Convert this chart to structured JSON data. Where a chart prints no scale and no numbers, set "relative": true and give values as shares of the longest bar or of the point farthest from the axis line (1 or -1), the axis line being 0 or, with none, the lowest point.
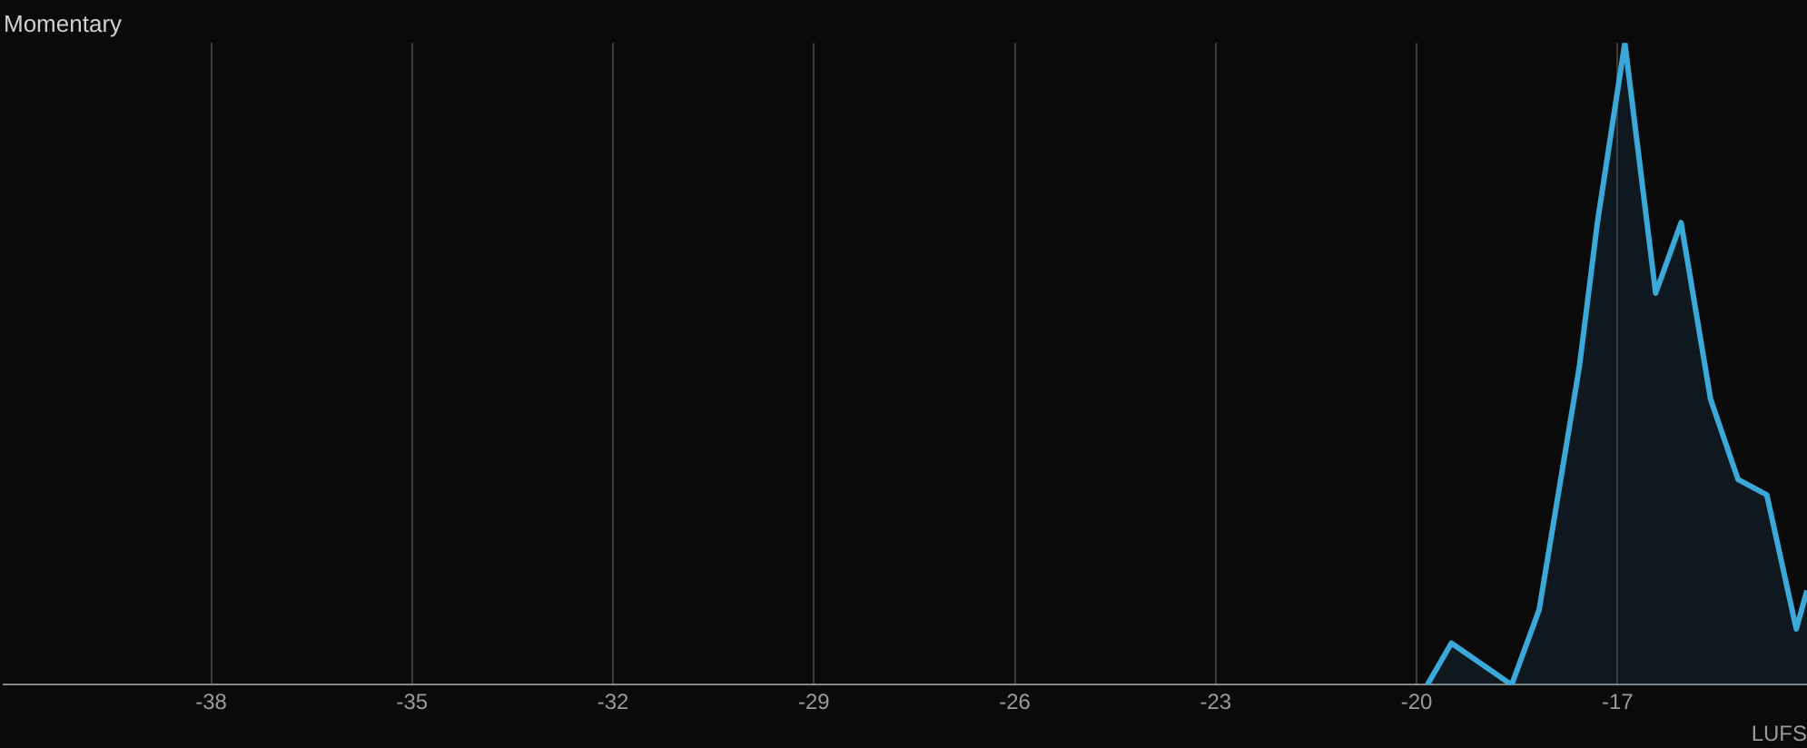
{
  "chart_data": {
    "type": "area",
    "title": "Momentary",
    "xlabel": "LUFS",
    "relative": true,
    "xlim": [
      -41.1,
      -14.17
    ],
    "xticks": [
      -38,
      -35,
      -32,
      -29,
      -26,
      -23,
      -20,
      -17
    ],
    "grid": "x",
    "series": [
      {
        "color": "#3aa8d8",
        "x": [
          -19.84,
          -19.48,
          -18.58,
          -18.17,
          -17.57,
          -17.3,
          -16.89,
          -16.43,
          -16.05,
          -15.61,
          -15.2,
          -14.77,
          -14.33,
          -14.17
        ],
        "values": [
          0,
          0.065,
          0,
          0.117,
          0.495,
          0.72,
          1,
          0.61,
          0.72,
          0.445,
          0.32,
          0.296,
          0.087,
          0.147
        ]
      }
    ]
  }
}
